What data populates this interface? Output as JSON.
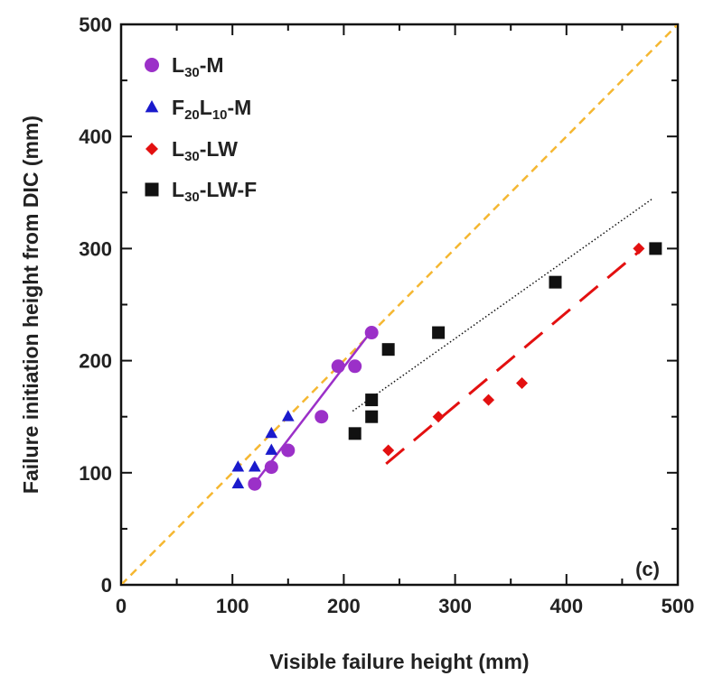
{
  "chart_data": {
    "type": "scatter",
    "xlabel": "Visible failure height (mm)",
    "ylabel": "Failure initiation height from DIC (mm)",
    "xlim": [
      0,
      500
    ],
    "ylim": [
      0,
      500
    ],
    "xticks": [
      "0",
      "100",
      "200",
      "300",
      "400",
      "500"
    ],
    "yticks": [
      "0",
      "100",
      "200",
      "300",
      "400",
      "500"
    ],
    "grid": false,
    "legend_position": "top-left",
    "panel_label": "(c)",
    "reference_line": {
      "x": [
        0,
        500
      ],
      "y": [
        0,
        500
      ],
      "color": "#f5b731",
      "style": "dashed"
    },
    "series": [
      {
        "name": "L30-M",
        "legend": {
          "base": "L",
          "sub": "30",
          "rest": "-M"
        },
        "marker": "circle",
        "color": "#9b30c8",
        "x": [
          120,
          135,
          150,
          180,
          195,
          210,
          225
        ],
        "y": [
          90,
          105,
          120,
          150,
          195,
          195,
          225
        ],
        "fit": {
          "x": [
            118,
            226
          ],
          "y": [
            88,
            228
          ],
          "style": "solid"
        }
      },
      {
        "name": "F20L10-M",
        "legend": {
          "base": "F",
          "sub": "20",
          "rest": "L",
          "sub2": "10",
          "rest2": "-M"
        },
        "marker": "triangle",
        "color": "#1a1acc",
        "x": [
          105,
          105,
          120,
          135,
          135,
          150
        ],
        "y": [
          90,
          105,
          105,
          120,
          135,
          150
        ],
        "fit": null
      },
      {
        "name": "L30-LW",
        "legend": {
          "base": "L",
          "sub": "30",
          "rest": "-LW"
        },
        "marker": "diamond",
        "color": "#e31010",
        "x": [
          240,
          285,
          330,
          360,
          465
        ],
        "y": [
          120,
          150,
          165,
          180,
          300
        ],
        "fit": {
          "x": [
            238,
            466
          ],
          "y": [
            108,
            298
          ],
          "style": "long-dash"
        }
      },
      {
        "name": "L30-LW-F",
        "legend": {
          "base": "L",
          "sub": "30",
          "rest": "-LW-F"
        },
        "marker": "square",
        "color": "#111111",
        "x": [
          210,
          225,
          225,
          240,
          285,
          390,
          480
        ],
        "y": [
          135,
          150,
          165,
          210,
          225,
          270,
          300
        ],
        "fit": {
          "x": [
            208,
            478
          ],
          "y": [
            155,
            345
          ],
          "style": "dotted"
        }
      }
    ]
  }
}
